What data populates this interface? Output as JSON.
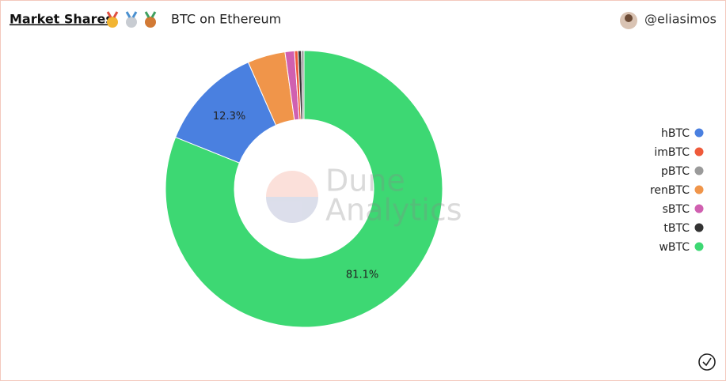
{
  "header": {
    "title": "Market Shares",
    "subtitle": "BTC on Ethereum",
    "author": "@eliasimos"
  },
  "watermark": [
    "Dune",
    "Analytics"
  ],
  "chart_data": {
    "type": "donut",
    "categories": [
      "hBTC",
      "imBTC",
      "pBTC",
      "renBTC",
      "sBTC",
      "tBTC",
      "wBTC"
    ],
    "values": [
      12.3,
      0.4,
      0.3,
      4.4,
      1.1,
      0.4,
      81.1
    ],
    "value_labels": [
      "12.3%",
      null,
      null,
      null,
      null,
      null,
      "81.1%"
    ],
    "colors": [
      "#4a80e0",
      "#ef5a3a",
      "#9a9a9a",
      "#f0954a",
      "#d060b0",
      "#333333",
      "#3dd873"
    ],
    "legend": "right"
  }
}
